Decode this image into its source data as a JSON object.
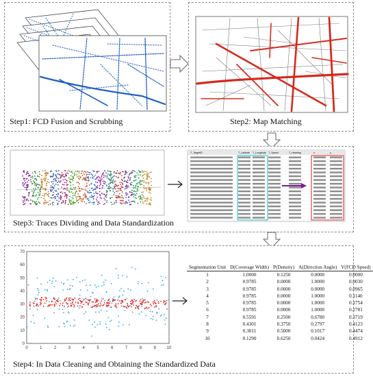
{
  "step1": {
    "caption": "Step1: FCD Fusion and Scrubbing"
  },
  "step2": {
    "caption": "Step2: Map Matching"
  },
  "step3": {
    "caption": "Step3: Traces Dividing and Data Standardization",
    "columns": [
      "T_TargetID",
      "T_Latitude",
      "T_Longitude",
      "T_Speed",
      "T_Heading",
      "x",
      "y"
    ]
  },
  "step4": {
    "caption": "Step4: In Data Cleaning and Obtaining the Standardized Data",
    "scatter": {
      "y_ticks": [
        "70",
        "60",
        "50",
        "40",
        "30",
        "20",
        "10",
        "0"
      ],
      "x_ticks": [
        "0",
        "1",
        "2",
        "3",
        "4",
        "5",
        "6",
        "7",
        "8",
        "9",
        "10"
      ]
    },
    "table": {
      "headers": [
        "Segmentation Unit",
        "D(Coverage Width)",
        "P(Density)",
        "A(Direction Angle)",
        "V(FCD Speed)"
      ],
      "rows": [
        [
          "1",
          "1.0000",
          "0.1250",
          "0.0000",
          "0.0000"
        ],
        [
          "2",
          "0.9785",
          "0.0000",
          "1.0000",
          "0.0030"
        ],
        [
          "3",
          "0.9785",
          "0.0000",
          "0.0000",
          "0.0965"
        ],
        [
          "4",
          "0.9785",
          "0.0000",
          "1.0000",
          "0.1140"
        ],
        [
          "5",
          "0.9785",
          "0.0000",
          "1.0000",
          "0.1754"
        ],
        [
          "6",
          "0.9785",
          "0.0000",
          "1.0000",
          "0.2781"
        ],
        [
          "7",
          "0.5591",
          "0.2500",
          "0.6780",
          "0.3719"
        ],
        [
          "8",
          "0.4301",
          "0.3750",
          "0.2797",
          "0.4123"
        ],
        [
          "9",
          "0.3011",
          "0.5000",
          "0.1017",
          "0.4474"
        ],
        [
          "10",
          "0.1290",
          "0.6250",
          "0.0424",
          "0.4912"
        ]
      ]
    }
  },
  "colors": {
    "trace_blue": "#1f5fc4",
    "trace_red": "#d42a1e",
    "scatter_cyan": "#2aa8e0",
    "scatter_red": "#e02020"
  }
}
